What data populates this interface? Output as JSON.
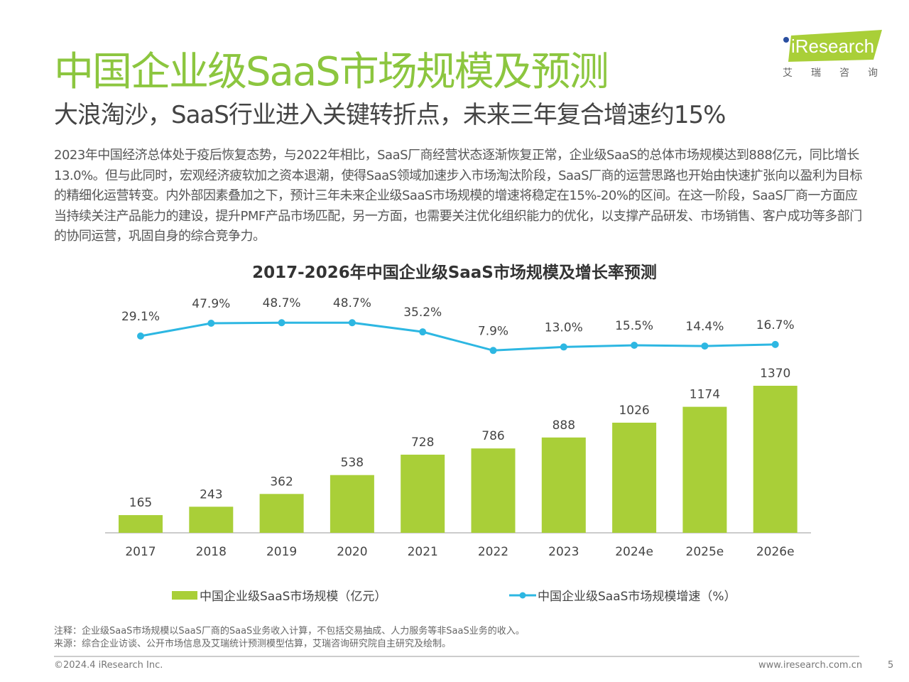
{
  "title": "中国企业级SaaS市场规模及预测",
  "subtitle": "大浪淘沙，SaaS行业进入关键转折点，未来三年复合增速约15%",
  "body": "2023年中国经济总体处于疫后恢复态势，与2022年相比，SaaS厂商经营状态逐渐恢复正常，企业级SaaS的总体市场规模达到888亿元，同比增长13.0%。但与此同时，宏观经济疲软加之资本退潮，使得SaaS领域加速步入市场淘汰阶段，SaaS厂商的运营思路也开始由快速扩张向以盈利为目标的精细化运营转变。内外部因素叠加之下，预计三年未来企业级SaaS市场规模的增速将稳定在15%-20%的区间。在这一阶段，SaaS厂商一方面应当持续关注产品能力的建设，提升PMF产品市场匹配，另一方面，也需要关注优化组织能力的优化，以支撑产品研发、市场销售、客户成功等多部门的协同运营，巩固自身的综合竞争力。",
  "logo": {
    "text": "iResearch",
    "cn": "艾瑞咨询"
  },
  "notes": {
    "note": "注释：企业级SaaS市场规模以SaaS厂商的SaaS业务收入计算，不包括交易抽成、人力服务等非SaaS业务的收入。",
    "source": "来源：综合企业访谈、公开市场信息及艾瑞统计预测模型估算，艾瑞咨询研究院自主研究及绘制。"
  },
  "footer": {
    "copyright": "©2024.4 iResearch Inc.",
    "url": "www.iresearch.com.cn",
    "page": "5"
  },
  "colors": {
    "title": "#8cc63f",
    "bar": "#a9cf38",
    "line": "#2db7e2"
  },
  "chart_data": {
    "type": "bar+line",
    "title": "2017-2026年中国企业级SaaS市场规模及增长率预测",
    "categories": [
      "2017",
      "2018",
      "2019",
      "2020",
      "2021",
      "2022",
      "2023",
      "2024e",
      "2025e",
      "2026e"
    ],
    "series": [
      {
        "name": "中国企业级SaaS市场规模（亿元）",
        "type": "bar",
        "values": [
          165,
          243,
          362,
          538,
          728,
          786,
          888,
          1026,
          1174,
          1370
        ]
      },
      {
        "name": "中国企业级SaaS市场规模增速（%）",
        "type": "line",
        "values": [
          29.1,
          47.9,
          48.7,
          48.7,
          35.2,
          7.9,
          13.0,
          15.5,
          14.4,
          16.7
        ],
        "labels": [
          "29.1%",
          "47.9%",
          "48.7%",
          "48.7%",
          "35.2%",
          "7.9%",
          "13.0%",
          "15.5%",
          "14.4%",
          "16.7%"
        ]
      }
    ],
    "legend": "bottom",
    "grid": false
  }
}
